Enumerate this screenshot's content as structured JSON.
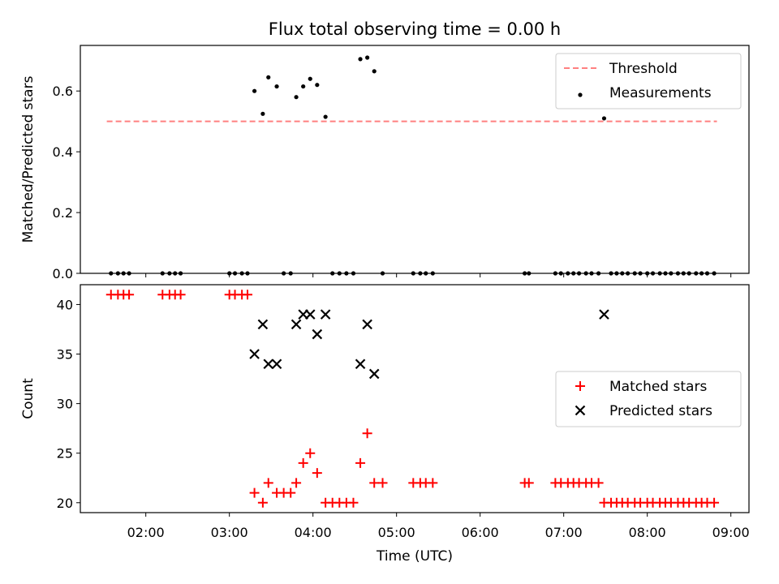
{
  "chart_data": [
    {
      "type": "scatter",
      "title": "Flux total observing time = 0.00 h",
      "xlabel": "",
      "ylabel": "Matched/Predicted stars",
      "ylim": [
        0,
        0.75
      ],
      "yticks": [
        0.0,
        0.2,
        0.4,
        0.6
      ],
      "ytick_labels": [
        "0.0",
        "0.2",
        "0.4",
        "0.6"
      ],
      "xlim": [
        "01:13",
        "09:13"
      ],
      "xticks": [
        "02:00",
        "03:00",
        "04:00",
        "05:00",
        "06:00",
        "07:00",
        "08:00",
        "09:00"
      ],
      "legend_position": "top-right",
      "legend": [
        {
          "label": "Threshold",
          "style": "dashed-line",
          "color": "#ff8080"
        },
        {
          "label": "Measurements",
          "style": "dot",
          "color": "#000000"
        }
      ],
      "threshold": {
        "name": "Threshold",
        "value": 0.5,
        "x_start": "01:32",
        "x_end": "08:50"
      },
      "series": [
        {
          "name": "Measurements",
          "x": [
            "01:35",
            "01:40",
            "01:44",
            "01:48",
            "02:12",
            "02:17",
            "02:21",
            "02:25",
            "03:00",
            "03:04",
            "03:09",
            "03:13",
            "03:18",
            "03:24",
            "03:28",
            "03:34",
            "03:39",
            "03:44",
            "03:48",
            "03:53",
            "03:58",
            "04:03",
            "04:09",
            "04:14",
            "04:19",
            "04:24",
            "04:29",
            "04:34",
            "04:39",
            "04:44",
            "04:50",
            "05:12",
            "05:17",
            "05:21",
            "05:26",
            "06:32",
            "06:35",
            "06:54",
            "06:58",
            "07:03",
            "07:07",
            "07:11",
            "07:16",
            "07:20",
            "07:25",
            "07:29",
            "07:34",
            "07:38",
            "07:42",
            "07:46",
            "07:51",
            "07:55",
            "08:00",
            "08:04",
            "08:09",
            "08:13",
            "08:17",
            "08:22",
            "08:26",
            "08:30",
            "08:35",
            "08:39",
            "08:43",
            "08:48"
          ],
          "y": [
            0,
            0,
            0,
            0,
            0,
            0,
            0,
            0,
            0,
            0,
            0,
            0,
            0.6,
            0.525,
            0.645,
            0.615,
            0,
            0,
            0.58,
            0.615,
            0.64,
            0.62,
            0.515,
            0,
            0,
            0,
            0,
            0.705,
            0.71,
            0.665,
            0,
            0,
            0,
            0,
            0,
            0,
            0,
            0,
            0,
            0,
            0,
            0,
            0,
            0,
            0,
            0.51,
            0,
            0,
            0,
            0,
            0,
            0,
            0,
            0,
            0,
            0,
            0,
            0,
            0,
            0,
            0,
            0,
            0,
            0
          ]
        }
      ]
    },
    {
      "type": "scatter",
      "title": "",
      "xlabel": "Time (UTC)",
      "ylabel": "Count",
      "ylim": [
        19,
        42
      ],
      "yticks": [
        20,
        25,
        30,
        35,
        40
      ],
      "ytick_labels": [
        "20",
        "25",
        "30",
        "35",
        "40"
      ],
      "xlim": [
        "01:13",
        "09:13"
      ],
      "xticks": [
        "02:00",
        "03:00",
        "04:00",
        "05:00",
        "06:00",
        "07:00",
        "08:00",
        "09:00"
      ],
      "legend_position": "center-right",
      "legend": [
        {
          "label": "Matched stars",
          "style": "plus",
          "color": "#ff0000"
        },
        {
          "label": "Predicted stars",
          "style": "x",
          "color": "#000000"
        }
      ],
      "series": [
        {
          "name": "Matched stars",
          "x": [
            "01:35",
            "01:40",
            "01:44",
            "01:48",
            "02:12",
            "02:17",
            "02:21",
            "02:25",
            "03:00",
            "03:04",
            "03:09",
            "03:13",
            "03:18",
            "03:24",
            "03:28",
            "03:34",
            "03:39",
            "03:44",
            "03:48",
            "03:53",
            "03:58",
            "04:03",
            "04:09",
            "04:14",
            "04:19",
            "04:24",
            "04:29",
            "04:34",
            "04:39",
            "04:44",
            "04:50",
            "05:12",
            "05:17",
            "05:21",
            "05:26",
            "06:32",
            "06:35",
            "06:54",
            "06:58",
            "07:03",
            "07:07",
            "07:11",
            "07:16",
            "07:20",
            "07:25",
            "07:29",
            "07:34",
            "07:38",
            "07:42",
            "07:46",
            "07:51",
            "07:55",
            "08:00",
            "08:04",
            "08:09",
            "08:13",
            "08:17",
            "08:22",
            "08:26",
            "08:30",
            "08:35",
            "08:39",
            "08:43",
            "08:48"
          ],
          "y": [
            41,
            41,
            41,
            41,
            41,
            41,
            41,
            41,
            41,
            41,
            41,
            41,
            21,
            20,
            22,
            21,
            21,
            21,
            22,
            24,
            25,
            23,
            20,
            20,
            20,
            20,
            20,
            24,
            27,
            22,
            22,
            22,
            22,
            22,
            22,
            22,
            22,
            22,
            22,
            22,
            22,
            22,
            22,
            22,
            22,
            20,
            20,
            20,
            20,
            20,
            20,
            20,
            20,
            20,
            20,
            20,
            20,
            20,
            20,
            20,
            20,
            20,
            20,
            20
          ]
        },
        {
          "name": "Predicted stars",
          "x": [
            "03:18",
            "03:24",
            "03:28",
            "03:34",
            "03:48",
            "03:53",
            "03:58",
            "04:03",
            "04:09",
            "04:34",
            "04:39",
            "04:44",
            "07:29"
          ],
          "y": [
            35,
            38,
            34,
            34,
            38,
            39,
            39,
            37,
            39,
            34,
            38,
            33,
            39
          ]
        }
      ]
    }
  ]
}
